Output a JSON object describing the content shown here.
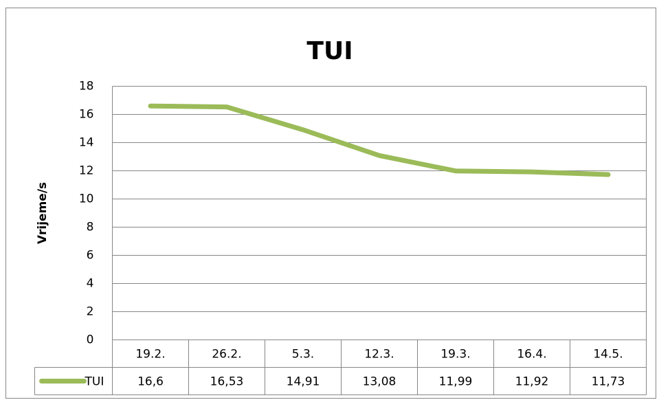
{
  "chart_data": {
    "type": "line",
    "title": "TUI",
    "y_label": "Vrijeme/s",
    "categories": [
      "19.2.",
      "26.2.",
      "5.3.",
      "12.3.",
      "19.3.",
      "16.4.",
      "14.5."
    ],
    "series": [
      {
        "name": "TUI",
        "color": "#9bbb59",
        "values": [
          16.6,
          16.53,
          14.91,
          13.08,
          11.99,
          11.92,
          11.73
        ],
        "value_labels": [
          "16,6",
          "16,53",
          "14,91",
          "13,08",
          "11,99",
          "11,92",
          "11,73"
        ]
      }
    ],
    "ylim": [
      0,
      18
    ],
    "yticks": [
      0,
      2,
      4,
      6,
      8,
      10,
      12,
      14,
      16,
      18
    ],
    "grid": true,
    "data_table": true
  }
}
